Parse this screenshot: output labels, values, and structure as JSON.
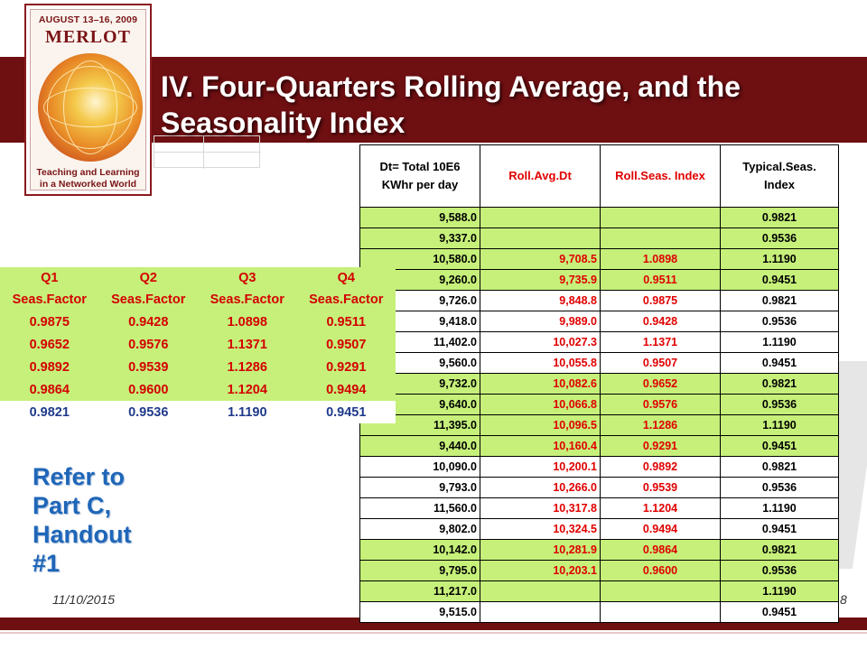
{
  "logo": {
    "date": "AUGUST 13–16, 2009",
    "name": "MERLOT",
    "tagline_1": "Teaching and Learning",
    "tagline_2": "in a Networked World"
  },
  "slide": {
    "title": "IV. Four-Quarters Rolling Average, and the Seasonality Index",
    "refer_1": "Refer to",
    "refer_2": "Part C,",
    "refer_3": "Handout",
    "refer_4": "#1",
    "date": "11/10/2015",
    "page_number": "8"
  },
  "main_table": {
    "headers": [
      "Dt= Total 10E6 KWhr per day",
      "Roll.Avg.Dt",
      "Roll.Seas. Index",
      "Typical.Seas. Index"
    ],
    "rows": [
      {
        "dt": "9,588.0",
        "roll_avg": "",
        "roll_seas": "",
        "typical": "0.9821"
      },
      {
        "dt": "9,337.0",
        "roll_avg": "",
        "roll_seas": "",
        "typical": "0.9536"
      },
      {
        "dt": "10,580.0",
        "roll_avg": "9,708.5",
        "roll_seas": "1.0898",
        "typical": "1.1190"
      },
      {
        "dt": "9,260.0",
        "roll_avg": "9,735.9",
        "roll_seas": "0.9511",
        "typical": "0.9451"
      },
      {
        "dt": "9,726.0",
        "roll_avg": "9,848.8",
        "roll_seas": "0.9875",
        "typical": "0.9821"
      },
      {
        "dt": "9,418.0",
        "roll_avg": "9,989.0",
        "roll_seas": "0.9428",
        "typical": "0.9536"
      },
      {
        "dt": "11,402.0",
        "roll_avg": "10,027.3",
        "roll_seas": "1.1371",
        "typical": "1.1190"
      },
      {
        "dt": "9,560.0",
        "roll_avg": "10,055.8",
        "roll_seas": "0.9507",
        "typical": "0.9451"
      },
      {
        "dt": "9,732.0",
        "roll_avg": "10,082.6",
        "roll_seas": "0.9652",
        "typical": "0.9821"
      },
      {
        "dt": "9,640.0",
        "roll_avg": "10,066.8",
        "roll_seas": "0.9576",
        "typical": "0.9536"
      },
      {
        "dt": "11,395.0",
        "roll_avg": "10,096.5",
        "roll_seas": "1.1286",
        "typical": "1.1190"
      },
      {
        "dt": "9,440.0",
        "roll_avg": "10,160.4",
        "roll_seas": "0.9291",
        "typical": "0.9451"
      },
      {
        "dt": "10,090.0",
        "roll_avg": "10,200.1",
        "roll_seas": "0.9892",
        "typical": "0.9821"
      },
      {
        "dt": "9,793.0",
        "roll_avg": "10,266.0",
        "roll_seas": "0.9539",
        "typical": "0.9536"
      },
      {
        "dt": "11,560.0",
        "roll_avg": "10,317.8",
        "roll_seas": "1.1204",
        "typical": "1.1190"
      },
      {
        "dt": "9,802.0",
        "roll_avg": "10,324.5",
        "roll_seas": "0.9494",
        "typical": "0.9451"
      },
      {
        "dt": "10,142.0",
        "roll_avg": "10,281.9",
        "roll_seas": "0.9864",
        "typical": "0.9821"
      },
      {
        "dt": "9,795.0",
        "roll_avg": "10,203.1",
        "roll_seas": "0.9600",
        "typical": "0.9536"
      },
      {
        "dt": "11,217.0",
        "roll_avg": "",
        "roll_seas": "",
        "typical": "1.1190"
      },
      {
        "dt": "9,515.0",
        "roll_avg": "",
        "roll_seas": "",
        "typical": "0.9451"
      }
    ]
  },
  "seas_table": {
    "header_1": [
      "Q1",
      "Q2",
      "Q3",
      "Q4"
    ],
    "header_2": [
      "Seas.Factor",
      "Seas.Factor",
      "Seas.Factor",
      "Seas.Factor"
    ],
    "rows": [
      [
        "0.9875",
        "0.9428",
        "1.0898",
        "0.9511"
      ],
      [
        "0.9652",
        "0.9576",
        "1.1371",
        "0.9507"
      ],
      [
        "0.9892",
        "0.9539",
        "1.1286",
        "0.9291"
      ],
      [
        "0.9864",
        "0.9600",
        "1.1204",
        "0.9494"
      ],
      [
        "0.9821",
        "0.9536",
        "1.1190",
        "0.9451"
      ]
    ]
  }
}
